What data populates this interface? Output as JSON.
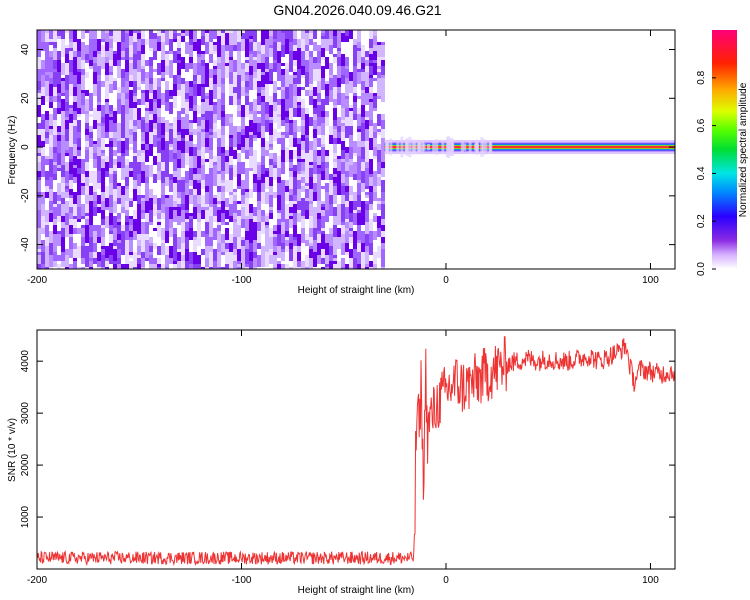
{
  "title": "GN04.2026.040.09.46.G21",
  "colors": {
    "noise": "#6a00e8",
    "signal_band": "#ff2a2a",
    "snr_line": "#ee3333",
    "frame": "#000000"
  },
  "chart_data": [
    {
      "type": "heatmap",
      "xlabel": "Height of straight line (km)",
      "ylabel": "Frequency (Hz)",
      "xlim": [
        -200,
        112
      ],
      "ylim": [
        -50,
        48
      ],
      "xticks": [
        -200,
        -100,
        0,
        100
      ],
      "yticks": [
        -40,
        -20,
        0,
        20,
        40
      ],
      "noise_region_x": [
        -200,
        -30
      ],
      "signal_start_x": -30,
      "signal_freq_hz": 0,
      "colorbar": {
        "label": "Normalized spectral amplitude",
        "ticks": [
          "0.0",
          "0.2",
          "0.4",
          "0.6",
          "0.8"
        ],
        "range": [
          0,
          1
        ],
        "colormap": "rainbow"
      }
    },
    {
      "type": "line",
      "xlabel": "Height of straight line (km)",
      "ylabel": "SNR (10 * v/v)",
      "xlim": [
        -200,
        112
      ],
      "ylim": [
        0,
        4600
      ],
      "xticks": [
        -200,
        -100,
        0,
        100
      ],
      "yticks": [
        1000,
        2000,
        3000,
        4000
      ],
      "series": [
        {
          "x": [
            -200,
            -180,
            -160,
            -140,
            -120,
            -100,
            -80,
            -60,
            -40,
            -20,
            -16,
            -15,
            -14,
            -13,
            -12,
            -11,
            -10,
            -9,
            -8,
            -6,
            -4,
            -2,
            0,
            2,
            5,
            8,
            12,
            16,
            20,
            25,
            30,
            35,
            40,
            45,
            50,
            55,
            60,
            65,
            70,
            75,
            80,
            85,
            88,
            90,
            92,
            95,
            100,
            105,
            110,
            112
          ],
          "y": [
            250,
            250,
            250,
            250,
            250,
            250,
            250,
            250,
            250,
            250,
            250,
            2000,
            3200,
            2600,
            3800,
            1200,
            4000,
            2500,
            2900,
            3000,
            3200,
            3300,
            3400,
            3500,
            3600,
            3500,
            3550,
            3650,
            3750,
            3850,
            3950,
            4000,
            4050,
            4000,
            4050,
            4000,
            4000,
            4050,
            4100,
            4000,
            4100,
            4200,
            4300,
            3900,
            3600,
            3850,
            3800,
            3750,
            3800,
            3800
          ],
          "noise_amplitude_before_edge": 250,
          "noise_amplitude_after_edge": 200
        }
      ]
    }
  ]
}
